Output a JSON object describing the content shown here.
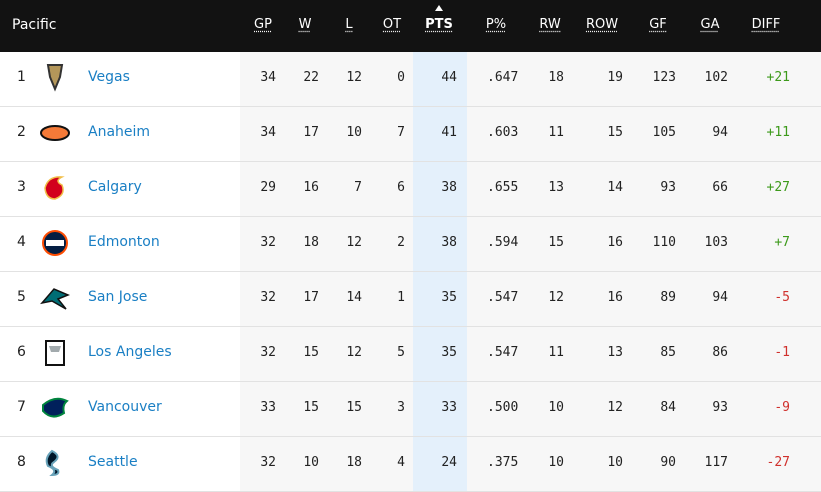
{
  "table": {
    "division": "Pacific",
    "columns": [
      "GP",
      "W",
      "L",
      "OT",
      "PTS",
      "P%",
      "RW",
      "ROW",
      "GF",
      "GA",
      "DIFF"
    ],
    "rows": [
      {
        "rank": "1",
        "team": "Vegas",
        "cells": [
          "34",
          "22",
          "12",
          "0",
          "44",
          ".647",
          "18",
          "19",
          "123",
          "102",
          "+21"
        ]
      },
      {
        "rank": "2",
        "team": "Anaheim",
        "cells": [
          "34",
          "17",
          "10",
          "7",
          "41",
          ".603",
          "11",
          "15",
          "105",
          "94",
          "+11"
        ]
      },
      {
        "rank": "3",
        "team": "Calgary",
        "cells": [
          "29",
          "16",
          "7",
          "6",
          "38",
          ".655",
          "13",
          "14",
          "93",
          "66",
          "+27"
        ]
      },
      {
        "rank": "4",
        "team": "Edmonton",
        "cells": [
          "32",
          "18",
          "12",
          "2",
          "38",
          ".594",
          "15",
          "16",
          "110",
          "103",
          "+7"
        ]
      },
      {
        "rank": "5",
        "team": "San Jose",
        "cells": [
          "32",
          "17",
          "14",
          "1",
          "35",
          ".547",
          "12",
          "16",
          "89",
          "94",
          "-5"
        ]
      },
      {
        "rank": "6",
        "team": "Los Angeles",
        "cells": [
          "32",
          "15",
          "12",
          "5",
          "35",
          ".547",
          "11",
          "13",
          "85",
          "86",
          "-1"
        ]
      },
      {
        "rank": "7",
        "team": "Vancouver",
        "cells": [
          "33",
          "15",
          "15",
          "3",
          "33",
          ".500",
          "10",
          "12",
          "84",
          "93",
          "-9"
        ]
      },
      {
        "rank": "8",
        "team": "Seattle",
        "cells": [
          "32",
          "10",
          "18",
          "4",
          "24",
          ".375",
          "10",
          "10",
          "90",
          "117",
          "-27"
        ]
      }
    ]
  }
}
